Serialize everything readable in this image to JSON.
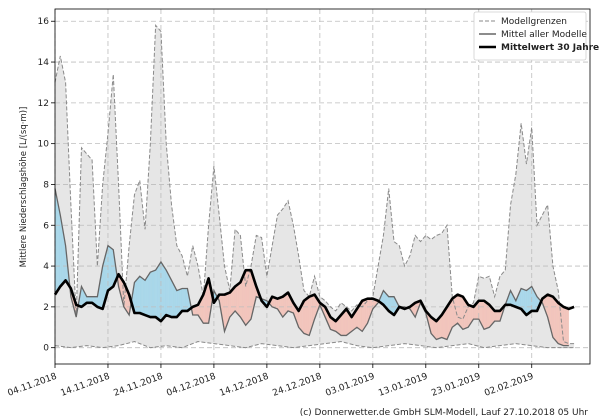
{
  "chart_data": {
    "type": "line",
    "ylabel": "Mittlere Niederschlagshöhe [L/(sq·m)]",
    "ylim": [
      -0.8,
      16.6
    ],
    "yticks": [
      0,
      2,
      4,
      6,
      8,
      10,
      12,
      14,
      16
    ],
    "xlim": [
      0,
      101
    ],
    "xticks": [
      {
        "day": 0,
        "label": "04.11.2018"
      },
      {
        "day": 10,
        "label": "14.11.2018"
      },
      {
        "day": 20,
        "label": "24.11.2018"
      },
      {
        "day": 30,
        "label": "04.12.2018"
      },
      {
        "day": 40,
        "label": "14.12.2018"
      },
      {
        "day": 50,
        "label": "24.12.2018"
      },
      {
        "day": 60,
        "label": "03.01.2019"
      },
      {
        "day": 70,
        "label": "13.01.2019"
      },
      {
        "day": 80,
        "label": "23.01.2019"
      },
      {
        "day": 90,
        "label": "02.02.2019"
      }
    ],
    "grid": true,
    "legend_position": "top-right",
    "legend": [
      "Modellgrenzen",
      "Mittel aller Modelle",
      "Mittelwert 30 Jahre"
    ],
    "colors": {
      "range_fill": "#e6e6e6",
      "range_line": "#8a8a8a",
      "mean_models": "#666666",
      "mean_30y": "#000000",
      "wetter": "#a9d7ea",
      "drier": "#f2c5bc"
    },
    "series": {
      "model_upper": [
        [
          0,
          13.0
        ],
        [
          1,
          14.3
        ],
        [
          2,
          13.0
        ],
        [
          3,
          7.0
        ],
        [
          4,
          1.5
        ],
        [
          5,
          9.8
        ],
        [
          6,
          9.5
        ],
        [
          7,
          9.2
        ],
        [
          8,
          4.0
        ],
        [
          9,
          8.0
        ],
        [
          10,
          10.5
        ],
        [
          11,
          13.4
        ],
        [
          12,
          8.0
        ],
        [
          13,
          2.0
        ],
        [
          14,
          5.0
        ],
        [
          15,
          7.5
        ],
        [
          16,
          8.2
        ],
        [
          17,
          5.8
        ],
        [
          18,
          10.0
        ],
        [
          19,
          15.8
        ],
        [
          20,
          15.5
        ],
        [
          21,
          10.0
        ],
        [
          22,
          7.0
        ],
        [
          23,
          5.0
        ],
        [
          24,
          4.5
        ],
        [
          25,
          3.5
        ],
        [
          26,
          5.0
        ],
        [
          27,
          4.0
        ],
        [
          28,
          2.5
        ],
        [
          29,
          6.0
        ],
        [
          30,
          8.9
        ],
        [
          31,
          6.5
        ],
        [
          32,
          4.0
        ],
        [
          33,
          2.8
        ],
        [
          34,
          5.8
        ],
        [
          35,
          5.5
        ],
        [
          36,
          3.0
        ],
        [
          37,
          4.0
        ],
        [
          38,
          5.5
        ],
        [
          39,
          5.4
        ],
        [
          40,
          3.5
        ],
        [
          41,
          5.0
        ],
        [
          42,
          6.5
        ],
        [
          43,
          6.8
        ],
        [
          44,
          7.2
        ],
        [
          45,
          6.0
        ],
        [
          46,
          4.5
        ],
        [
          47,
          2.8
        ],
        [
          48,
          2.5
        ],
        [
          49,
          3.5
        ],
        [
          50,
          2.5
        ],
        [
          51,
          2.3
        ],
        [
          52,
          2.0
        ],
        [
          53,
          1.8
        ],
        [
          54,
          2.2
        ],
        [
          55,
          2.0
        ],
        [
          56,
          1.8
        ],
        [
          57,
          2.1
        ],
        [
          58,
          2.0
        ],
        [
          59,
          2.3
        ],
        [
          60,
          2.5
        ],
        [
          61,
          4.0
        ],
        [
          62,
          5.5
        ],
        [
          63,
          7.8
        ],
        [
          64,
          5.2
        ],
        [
          65,
          5.0
        ],
        [
          66,
          4.0
        ],
        [
          67,
          4.5
        ],
        [
          68,
          5.5
        ],
        [
          69,
          5.2
        ],
        [
          70,
          5.5
        ],
        [
          71,
          5.3
        ],
        [
          72,
          5.5
        ],
        [
          73,
          5.6
        ],
        [
          74,
          6.0
        ],
        [
          75,
          2.5
        ],
        [
          76,
          1.5
        ],
        [
          77,
          1.4
        ],
        [
          78,
          2.0
        ],
        [
          79,
          2.2
        ],
        [
          80,
          3.5
        ],
        [
          81,
          3.4
        ],
        [
          82,
          3.5
        ],
        [
          83,
          2.5
        ],
        [
          84,
          3.5
        ],
        [
          85,
          3.8
        ],
        [
          86,
          7.0
        ],
        [
          87,
          8.5
        ],
        [
          88,
          11.0
        ],
        [
          89,
          9.0
        ],
        [
          90,
          10.8
        ],
        [
          91,
          6.0
        ],
        [
          92,
          6.5
        ],
        [
          93,
          7.0
        ],
        [
          94,
          4.0
        ],
        [
          95,
          2.8
        ],
        [
          96,
          0.3
        ],
        [
          97,
          0.2
        ],
        [
          98,
          0.2
        ]
      ],
      "model_lower": [
        [
          0,
          0.1
        ],
        [
          3,
          0
        ],
        [
          6,
          0.1
        ],
        [
          9,
          0
        ],
        [
          12,
          0.1
        ],
        [
          15,
          0.3
        ],
        [
          18,
          0
        ],
        [
          21,
          0.1
        ],
        [
          24,
          0
        ],
        [
          27,
          0.3
        ],
        [
          30,
          0.2
        ],
        [
          33,
          0.1
        ],
        [
          36,
          0
        ],
        [
          39,
          0.2
        ],
        [
          42,
          0.1
        ],
        [
          45,
          0
        ],
        [
          48,
          0.1
        ],
        [
          51,
          0.2
        ],
        [
          54,
          0.3
        ],
        [
          57,
          0.1
        ],
        [
          60,
          0
        ],
        [
          63,
          0.1
        ],
        [
          66,
          0.2
        ],
        [
          69,
          0.1
        ],
        [
          72,
          0
        ],
        [
          75,
          0.1
        ],
        [
          78,
          0.2
        ],
        [
          81,
          0
        ],
        [
          84,
          0.1
        ],
        [
          87,
          0.2
        ],
        [
          90,
          0.1
        ],
        [
          93,
          0
        ],
        [
          96,
          0
        ],
        [
          98,
          0
        ]
      ],
      "mean_models": [
        [
          0,
          7.8
        ],
        [
          1,
          6.5
        ],
        [
          2,
          5.0
        ],
        [
          3,
          2.5
        ],
        [
          4,
          1.5
        ],
        [
          5,
          3.0
        ],
        [
          6,
          2.5
        ],
        [
          7,
          2.5
        ],
        [
          8,
          2.5
        ],
        [
          9,
          4.0
        ],
        [
          10,
          5.0
        ],
        [
          11,
          4.8
        ],
        [
          12,
          3.0
        ],
        [
          13,
          2.0
        ],
        [
          14,
          1.6
        ],
        [
          15,
          3.2
        ],
        [
          16,
          3.5
        ],
        [
          17,
          3.3
        ],
        [
          18,
          3.7
        ],
        [
          19,
          3.8
        ],
        [
          20,
          4.2
        ],
        [
          21,
          3.8
        ],
        [
          22,
          3.3
        ],
        [
          23,
          2.8
        ],
        [
          24,
          2.9
        ],
        [
          25,
          2.9
        ],
        [
          26,
          1.6
        ],
        [
          27,
          1.6
        ],
        [
          28,
          1.2
        ],
        [
          29,
          1.2
        ],
        [
          30,
          2.8
        ],
        [
          31,
          2.3
        ],
        [
          32,
          0.8
        ],
        [
          33,
          1.5
        ],
        [
          34,
          1.8
        ],
        [
          35,
          1.5
        ],
        [
          36,
          1.1
        ],
        [
          37,
          1.4
        ],
        [
          38,
          2.5
        ],
        [
          39,
          2.4
        ],
        [
          40,
          2.3
        ],
        [
          41,
          2.0
        ],
        [
          42,
          1.9
        ],
        [
          43,
          1.5
        ],
        [
          44,
          1.8
        ],
        [
          45,
          1.7
        ],
        [
          46,
          1.0
        ],
        [
          47,
          0.7
        ],
        [
          48,
          0.6
        ],
        [
          49,
          1.4
        ],
        [
          50,
          2.1
        ],
        [
          51,
          1.5
        ],
        [
          52,
          0.9
        ],
        [
          53,
          0.8
        ],
        [
          54,
          0.6
        ],
        [
          55,
          0.6
        ],
        [
          56,
          0.8
        ],
        [
          57,
          1.0
        ],
        [
          58,
          0.8
        ],
        [
          59,
          1.2
        ],
        [
          60,
          1.9
        ],
        [
          61,
          2.2
        ],
        [
          62,
          2.8
        ],
        [
          63,
          2.5
        ],
        [
          64,
          2.5
        ],
        [
          65,
          2.0
        ],
        [
          66,
          2.0
        ],
        [
          67,
          1.9
        ],
        [
          68,
          1.5
        ],
        [
          69,
          2.2
        ],
        [
          70,
          1.7
        ],
        [
          71,
          0.7
        ],
        [
          72,
          0.4
        ],
        [
          73,
          0.5
        ],
        [
          74,
          0.4
        ],
        [
          75,
          1.0
        ],
        [
          76,
          1.2
        ],
        [
          77,
          0.9
        ],
        [
          78,
          1.0
        ],
        [
          79,
          1.4
        ],
        [
          80,
          1.4
        ],
        [
          81,
          0.9
        ],
        [
          82,
          1.0
        ],
        [
          83,
          1.3
        ],
        [
          84,
          1.3
        ],
        [
          85,
          2.1
        ],
        [
          86,
          2.8
        ],
        [
          87,
          2.3
        ],
        [
          88,
          2.9
        ],
        [
          89,
          2.8
        ],
        [
          90,
          3.0
        ],
        [
          91,
          2.5
        ],
        [
          92,
          2.2
        ],
        [
          93,
          1.5
        ],
        [
          94,
          0.5
        ],
        [
          95,
          0.2
        ],
        [
          96,
          0.1
        ],
        [
          97,
          0.1
        ]
      ],
      "mean_30y": [
        [
          0,
          2.6
        ],
        [
          1,
          3.0
        ],
        [
          2,
          3.3
        ],
        [
          3,
          2.9
        ],
        [
          4,
          2.1
        ],
        [
          5,
          2.0
        ],
        [
          6,
          2.2
        ],
        [
          7,
          2.2
        ],
        [
          8,
          2.0
        ],
        [
          9,
          1.9
        ],
        [
          10,
          2.8
        ],
        [
          11,
          3.0
        ],
        [
          12,
          3.6
        ],
        [
          13,
          3.2
        ],
        [
          14,
          2.6
        ],
        [
          15,
          1.7
        ],
        [
          16,
          1.7
        ],
        [
          17,
          1.6
        ],
        [
          18,
          1.5
        ],
        [
          19,
          1.5
        ],
        [
          20,
          1.3
        ],
        [
          21,
          1.6
        ],
        [
          22,
          1.5
        ],
        [
          23,
          1.5
        ],
        [
          24,
          1.8
        ],
        [
          25,
          1.8
        ],
        [
          26,
          2.0
        ],
        [
          27,
          2.1
        ],
        [
          28,
          2.6
        ],
        [
          29,
          3.4
        ],
        [
          30,
          2.2
        ],
        [
          31,
          2.6
        ],
        [
          32,
          2.6
        ],
        [
          33,
          2.7
        ],
        [
          34,
          3.0
        ],
        [
          35,
          3.2
        ],
        [
          36,
          3.8
        ],
        [
          37,
          3.8
        ],
        [
          38,
          3.0
        ],
        [
          39,
          2.3
        ],
        [
          40,
          2.0
        ],
        [
          41,
          2.5
        ],
        [
          42,
          2.4
        ],
        [
          43,
          2.5
        ],
        [
          44,
          2.7
        ],
        [
          45,
          2.2
        ],
        [
          46,
          1.8
        ],
        [
          47,
          2.3
        ],
        [
          48,
          2.5
        ],
        [
          49,
          2.6
        ],
        [
          50,
          2.2
        ],
        [
          51,
          2.0
        ],
        [
          52,
          1.5
        ],
        [
          53,
          1.3
        ],
        [
          54,
          1.6
        ],
        [
          55,
          1.9
        ],
        [
          56,
          1.5
        ],
        [
          57,
          1.9
        ],
        [
          58,
          2.3
        ],
        [
          59,
          2.4
        ],
        [
          60,
          2.4
        ],
        [
          61,
          2.3
        ],
        [
          62,
          2.1
        ],
        [
          63,
          1.8
        ],
        [
          64,
          1.6
        ],
        [
          65,
          2.0
        ],
        [
          66,
          1.9
        ],
        [
          67,
          2.0
        ],
        [
          68,
          2.2
        ],
        [
          69,
          2.3
        ],
        [
          70,
          1.8
        ],
        [
          71,
          1.5
        ],
        [
          72,
          1.3
        ],
        [
          73,
          1.6
        ],
        [
          74,
          2.0
        ],
        [
          75,
          2.4
        ],
        [
          76,
          2.6
        ],
        [
          77,
          2.5
        ],
        [
          78,
          2.1
        ],
        [
          79,
          2.0
        ],
        [
          80,
          2.3
        ],
        [
          81,
          2.3
        ],
        [
          82,
          2.1
        ],
        [
          83,
          1.8
        ],
        [
          84,
          1.8
        ],
        [
          85,
          2.1
        ],
        [
          86,
          2.1
        ],
        [
          87,
          2.0
        ],
        [
          88,
          1.9
        ],
        [
          89,
          1.6
        ],
        [
          90,
          1.8
        ],
        [
          91,
          1.8
        ],
        [
          92,
          2.4
        ],
        [
          93,
          2.6
        ],
        [
          94,
          2.5
        ],
        [
          95,
          2.2
        ],
        [
          96,
          2.0
        ],
        [
          97,
          1.9
        ],
        [
          98,
          2.0
        ]
      ]
    }
  },
  "footer": {
    "credit": "(c) Donnerwetter.de GmbH SLM-Modell, Lauf 27.10.2018 05 Uhr"
  }
}
